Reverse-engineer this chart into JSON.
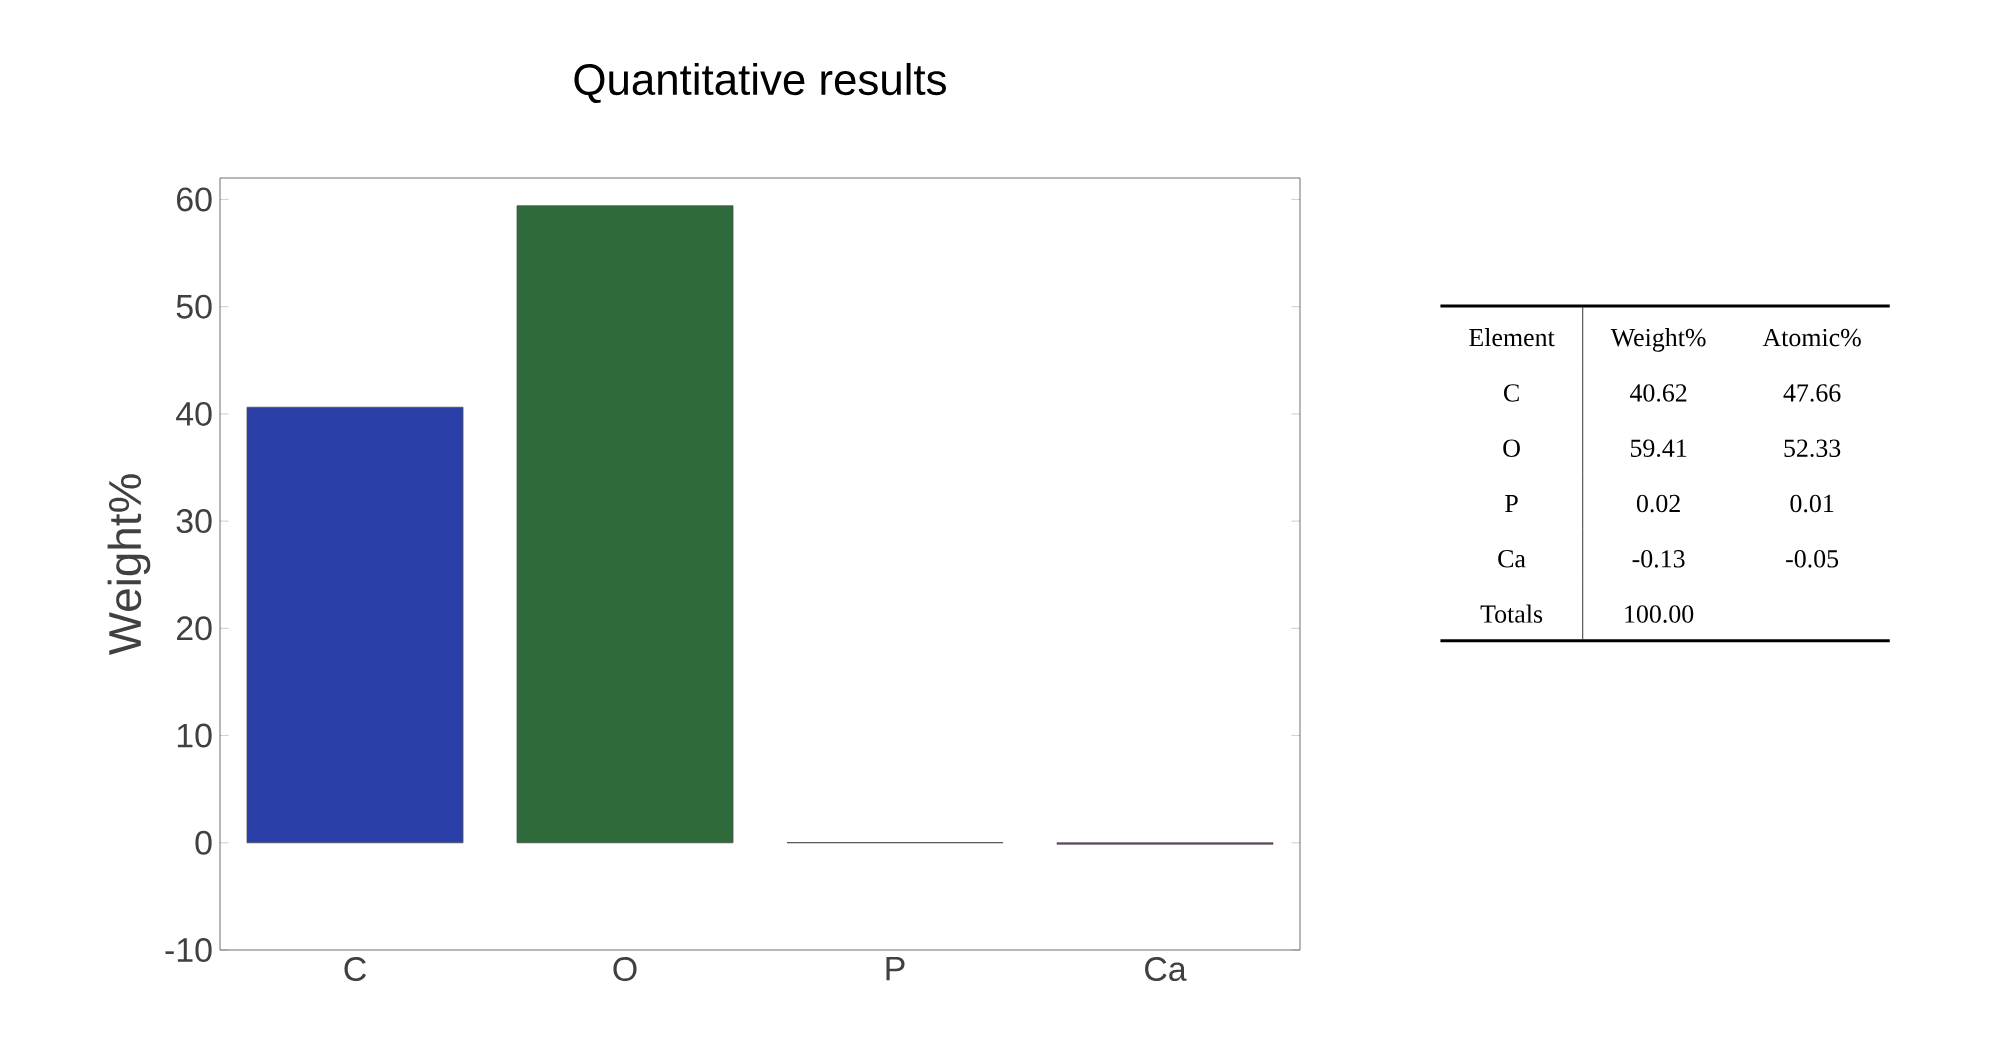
{
  "chart_data": [
    {
      "type": "bar",
      "title": "Quantitative results",
      "ylabel": "Weight%",
      "categories": [
        "C",
        "O",
        "P",
        "Ca"
      ],
      "values": [
        40.62,
        59.41,
        0.02,
        -0.13
      ],
      "colors": [
        "#2a3fa8",
        "#2f6b3a",
        "#a8302e",
        "#8e358e"
      ],
      "ylim": [
        -10,
        62
      ],
      "yticks": [
        -10,
        0,
        10,
        20,
        30,
        40,
        50,
        60
      ]
    },
    {
      "type": "other",
      "data_labels": true,
      "xlabel": "Element",
      "categories": [
        "C",
        "O",
        "P",
        "Ca"
      ],
      "series": [
        {
          "name": "Weight%",
          "values": [
            40.62,
            59.41,
            0.02,
            -0.13
          ]
        },
        {
          "name": "Atomic%",
          "values": [
            47.66,
            52.33,
            0.01,
            -0.05
          ]
        }
      ],
      "annotations": [
        "Totals",
        "100.00"
      ]
    }
  ]
}
